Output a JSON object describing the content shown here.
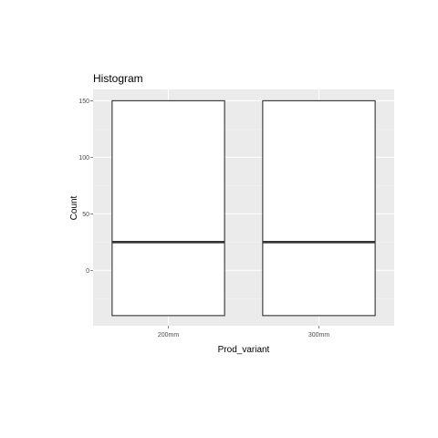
{
  "chart_data": {
    "type": "boxplot",
    "title": "Histogram",
    "xlabel": "Prod_variant",
    "ylabel": "Count",
    "categories": [
      "200mm",
      "300mm"
    ],
    "boxes": [
      {
        "category": "200mm",
        "lower": -40,
        "q1": -40,
        "median": 25,
        "q3": 150,
        "upper": 150
      },
      {
        "category": "300mm",
        "lower": -40,
        "q1": -40,
        "median": 25,
        "q3": 150,
        "upper": 150
      }
    ],
    "ylim": [
      -49,
      160
    ],
    "yticks": [
      0,
      50,
      100,
      150
    ],
    "grid": true,
    "colors": {
      "panel": "#ebebeb",
      "grid_major": "#ffffff",
      "grid_minor": "#f3f3f3",
      "box_fill": "#ffffff",
      "box_stroke": "#333333",
      "tick_mark": "#333333",
      "tick_text": "#4d4d4d"
    }
  }
}
